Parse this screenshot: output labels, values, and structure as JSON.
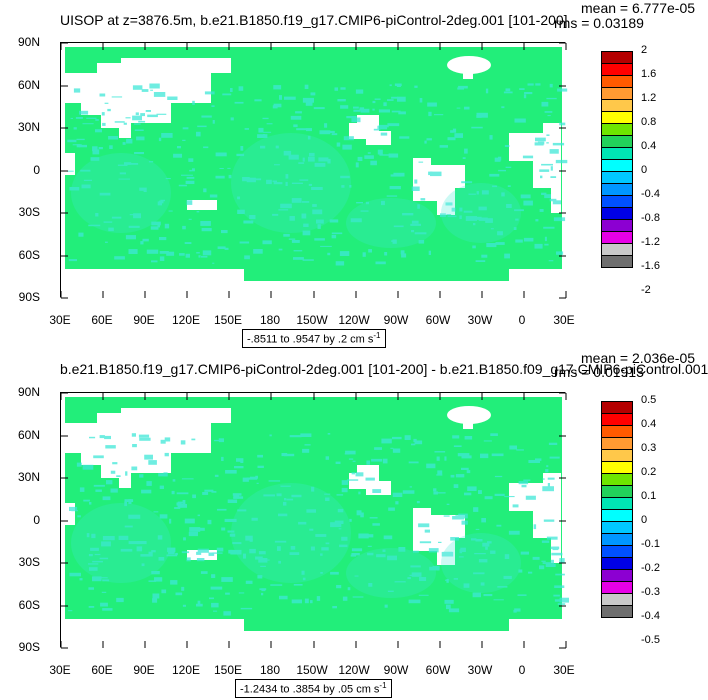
{
  "panels": [
    {
      "title": "UISOP at z=3876.5m, b.e21.B1850.f19_g17.CMIP6-piControl-2deg.001 [101-200]",
      "mean": "mean = 6.777e-05",
      "rms": "rms = 0.03189",
      "range_text": "-.8511 to .9547 by .2 cm s",
      "range_sup": "-1",
      "legend_labels": [
        "2",
        "1.6",
        "1.2",
        "0.8",
        "0.4",
        "0",
        "-0.4",
        "-0.8",
        "-1.2",
        "-1.6",
        "-2"
      ]
    },
    {
      "title": "b.e21.B1850.f19_g17.CMIP6-piControl-2deg.001 [101-200] - b.e21.B1850.f09_g17.CMIP6-piControl.001",
      "mean": "mean = 2.036e-05",
      "rms": "rms = 0.01913",
      "range_text": "-1.2434 to .3854 by .05 cm s",
      "range_sup": "-1",
      "legend_labels": [
        "0.5",
        "0.4",
        "0.3",
        "0.2",
        "0.1",
        "0",
        "-0.1",
        "-0.2",
        "-0.3",
        "-0.4",
        "-0.5"
      ]
    }
  ],
  "axes": {
    "lat_labels": [
      "90N",
      "60N",
      "30N",
      "0",
      "30S",
      "60S",
      "90S"
    ],
    "lon_labels": [
      "30E",
      "60E",
      "90E",
      "120E",
      "150E",
      "180",
      "150W",
      "120W",
      "90W",
      "60W",
      "30W",
      "0",
      "30E"
    ]
  },
  "legend_colors": [
    "#b40000",
    "#ff0000",
    "#ff5a00",
    "#ff9a32",
    "#ffc84a",
    "#ffff00",
    "#6ee600",
    "#22d25a",
    "#00e6b4",
    "#00ffff",
    "#00c8ff",
    "#0096ff",
    "#0050ff",
    "#0000e6",
    "#8c00d2",
    "#e600e6",
    "#c8c8c8",
    "#6e6e6e"
  ],
  "map_colors": {
    "ocean": "#22ee7a",
    "land": "#ffffff",
    "anomaly": "#3fe8d8"
  }
}
